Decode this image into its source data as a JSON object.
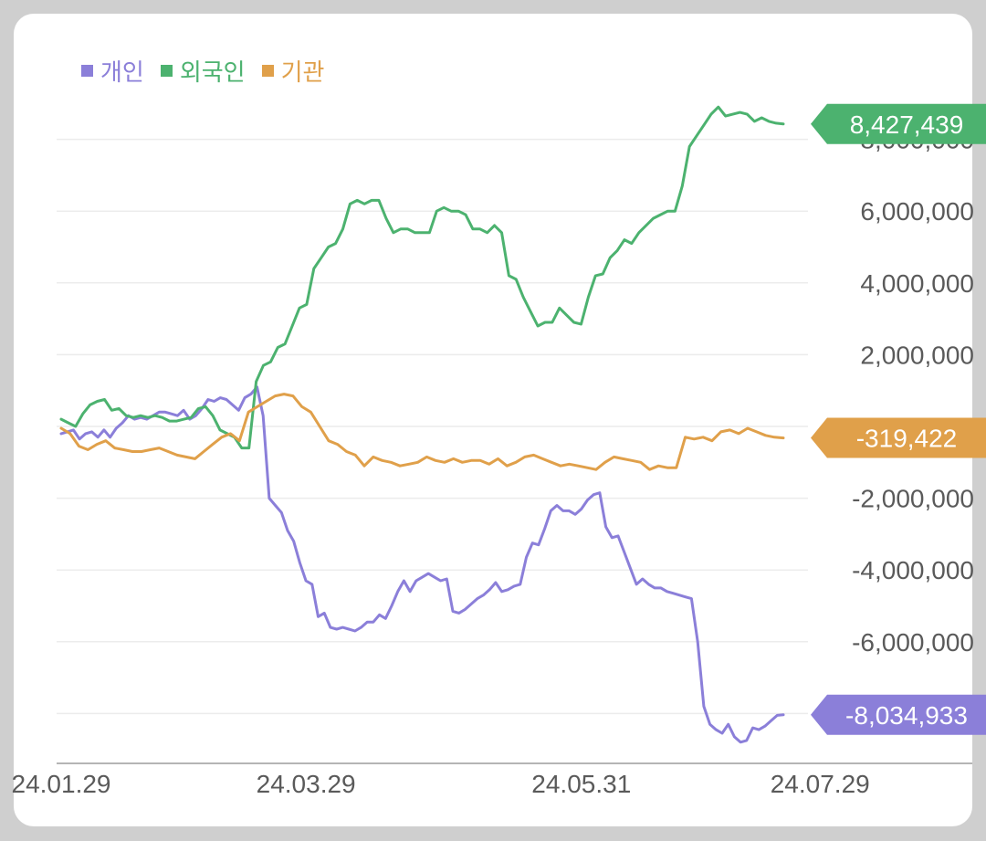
{
  "chart_data": {
    "type": "line",
    "legend_position": "top-left",
    "grid": true,
    "ylim": [
      -9000000,
      8500000
    ],
    "y_ticks": [
      8000000,
      6000000,
      4000000,
      2000000,
      0,
      -2000000,
      -4000000,
      -6000000,
      -8000000
    ],
    "y_tick_labels": [
      "8,000,000",
      "6,000,000",
      "4,000,000",
      "2,000,000",
      "0",
      "-2,000,000",
      "-4,000,000",
      "-6,000,000",
      "-8,000,000"
    ],
    "x_tick_labels": [
      {
        "label": "24.01.29",
        "index": 0
      },
      {
        "label": "24.03.29",
        "index": 40
      },
      {
        "label": "24.05.31",
        "index": 85
      },
      {
        "label": "24.07.29",
        "index": 124
      }
    ],
    "series": [
      {
        "name": "개인",
        "color": "#8b7fd9",
        "end_label": "-8,034,933",
        "values": [
          -200000,
          -150000,
          -100000,
          -350000,
          -200000,
          -150000,
          -300000,
          -100000,
          -300000,
          -50000,
          100000,
          300000,
          200000,
          250000,
          200000,
          300000,
          400000,
          400000,
          350000,
          300000,
          450000,
          200000,
          300000,
          500000,
          750000,
          700000,
          800000,
          750000,
          600000,
          450000,
          800000,
          900000,
          1100000,
          300000,
          -2000000,
          -2200000,
          -2400000,
          -2900000,
          -3200000,
          -3800000,
          -4300000,
          -4400000,
          -5300000,
          -5200000,
          -5600000,
          -5650000,
          -5600000,
          -5650000,
          -5700000,
          -5600000,
          -5450000,
          -5450000,
          -5250000,
          -5350000,
          -5000000,
          -4600000,
          -4300000,
          -4600000,
          -4300000,
          -4200000,
          -4100000,
          -4200000,
          -4300000,
          -4250000,
          -5150000,
          -5200000,
          -5100000,
          -4950000,
          -4800000,
          -4700000,
          -4550000,
          -4350000,
          -4600000,
          -4550000,
          -4450000,
          -4400000,
          -3650000,
          -3250000,
          -3300000,
          -2850000,
          -2350000,
          -2200000,
          -2350000,
          -2350000,
          -2450000,
          -2300000,
          -2050000,
          -1900000,
          -1850000,
          -2800000,
          -3100000,
          -3050000,
          -3500000,
          -3950000,
          -4400000,
          -4250000,
          -4400000,
          -4500000,
          -4500000,
          -4600000,
          -4650000,
          -4700000,
          -4750000,
          -4800000,
          -6000000,
          -7800000,
          -8300000,
          -8450000,
          -8550000,
          -8300000,
          -8650000,
          -8800000,
          -8750000,
          -8400000,
          -8450000,
          -8350000,
          -8200000,
          -8050000,
          -8034933
        ]
      },
      {
        "name": "외국인",
        "color": "#4cb26f",
        "end_label": "8,427,439",
        "values": [
          200000,
          100000,
          0,
          350000,
          600000,
          700000,
          750000,
          450000,
          500000,
          300000,
          250000,
          300000,
          250000,
          300000,
          250000,
          150000,
          150000,
          200000,
          250000,
          500000,
          550000,
          300000,
          -100000,
          -200000,
          -300000,
          -600000,
          -600000,
          1250000,
          1700000,
          1800000,
          2200000,
          2300000,
          2800000,
          3300000,
          3400000,
          4400000,
          4700000,
          5000000,
          5100000,
          5500000,
          6200000,
          6300000,
          6200000,
          6300000,
          6300000,
          5800000,
          5400000,
          5500000,
          5500000,
          5400000,
          5400000,
          5400000,
          6000000,
          6100000,
          6000000,
          6000000,
          5900000,
          5500000,
          5500000,
          5400000,
          5600000,
          5400000,
          4200000,
          4100000,
          3600000,
          3200000,
          2800000,
          2900000,
          2900000,
          3300000,
          3100000,
          2900000,
          2850000,
          3600000,
          4200000,
          4250000,
          4700000,
          4900000,
          5200000,
          5100000,
          5400000,
          5600000,
          5800000,
          5900000,
          6000000,
          6000000,
          6700000,
          7800000,
          8100000,
          8400000,
          8700000,
          8900000,
          8650000,
          8700000,
          8750000,
          8700000,
          8500000,
          8600000,
          8500000,
          8450000,
          8427439
        ]
      },
      {
        "name": "기관",
        "color": "#e0a04a",
        "end_label": "-319,422",
        "values": [
          -50000,
          -200000,
          -550000,
          -650000,
          -500000,
          -400000,
          -600000,
          -650000,
          -700000,
          -700000,
          -650000,
          -600000,
          -700000,
          -800000,
          -850000,
          -900000,
          -700000,
          -500000,
          -300000,
          -200000,
          -400000,
          400000,
          550000,
          700000,
          850000,
          900000,
          850000,
          550000,
          400000,
          0,
          -400000,
          -500000,
          -700000,
          -800000,
          -1100000,
          -850000,
          -950000,
          -1000000,
          -1100000,
          -1050000,
          -1000000,
          -850000,
          -950000,
          -1000000,
          -900000,
          -1000000,
          -950000,
          -950000,
          -1050000,
          -900000,
          -1100000,
          -1000000,
          -850000,
          -800000,
          -900000,
          -1000000,
          -1100000,
          -1050000,
          -1100000,
          -1150000,
          -1200000,
          -1000000,
          -850000,
          -900000,
          -950000,
          -1000000,
          -1200000,
          -1100000,
          -1150000,
          -1150000,
          -300000,
          -350000,
          -300000,
          -400000,
          -150000,
          -100000,
          -200000,
          -50000,
          -150000,
          -250000,
          -300000,
          -319422
        ]
      }
    ]
  }
}
